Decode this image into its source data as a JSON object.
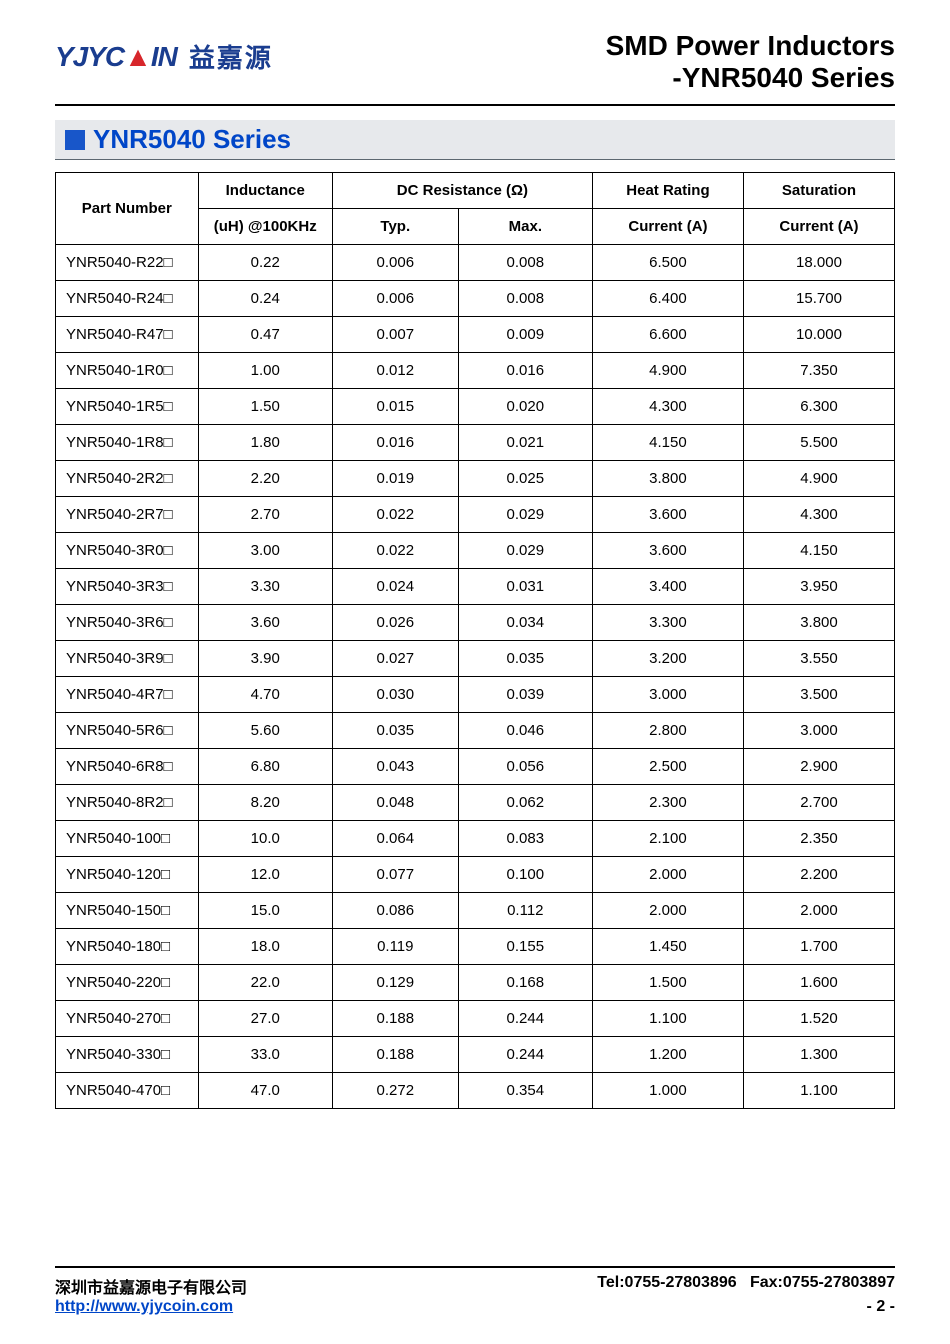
{
  "header": {
    "logo_en_pre": "YJYC",
    "logo_en_red": "▲",
    "logo_en_post": "IN",
    "logo_cn": "益嘉源",
    "title_main": "SMD Power Inductors",
    "title_sub": "-YNR5040 Series"
  },
  "series": {
    "label": "YNR5040 Series"
  },
  "table": {
    "headers": {
      "part_number": "Part Number",
      "inductance": "Inductance",
      "inductance_sub": "(uH) @100KHz",
      "dcr": "DC Resistance (Ω)",
      "typ": "Typ.",
      "max": "Max.",
      "heat": "Heat Rating",
      "heat_sub": "Current (A)",
      "sat": "Saturation",
      "sat_sub": "Current (A)"
    },
    "rows": [
      {
        "pn": "YNR5040-R22□",
        "ind": "0.22",
        "typ": "0.006",
        "max": "0.008",
        "heat": "6.500",
        "sat": "18.000"
      },
      {
        "pn": "YNR5040-R24□",
        "ind": "0.24",
        "typ": "0.006",
        "max": "0.008",
        "heat": "6.400",
        "sat": "15.700"
      },
      {
        "pn": "YNR5040-R47□",
        "ind": "0.47",
        "typ": "0.007",
        "max": "0.009",
        "heat": "6.600",
        "sat": "10.000"
      },
      {
        "pn": "YNR5040-1R0□",
        "ind": "1.00",
        "typ": "0.012",
        "max": "0.016",
        "heat": "4.900",
        "sat": "7.350"
      },
      {
        "pn": "YNR5040-1R5□",
        "ind": "1.50",
        "typ": "0.015",
        "max": "0.020",
        "heat": "4.300",
        "sat": "6.300"
      },
      {
        "pn": "YNR5040-1R8□",
        "ind": "1.80",
        "typ": "0.016",
        "max": "0.021",
        "heat": "4.150",
        "sat": "5.500"
      },
      {
        "pn": "YNR5040-2R2□",
        "ind": "2.20",
        "typ": "0.019",
        "max": "0.025",
        "heat": "3.800",
        "sat": "4.900"
      },
      {
        "pn": "YNR5040-2R7□",
        "ind": "2.70",
        "typ": "0.022",
        "max": "0.029",
        "heat": "3.600",
        "sat": "4.300"
      },
      {
        "pn": "YNR5040-3R0□",
        "ind": "3.00",
        "typ": "0.022",
        "max": "0.029",
        "heat": "3.600",
        "sat": "4.150"
      },
      {
        "pn": "YNR5040-3R3□",
        "ind": "3.30",
        "typ": "0.024",
        "max": "0.031",
        "heat": "3.400",
        "sat": "3.950"
      },
      {
        "pn": "YNR5040-3R6□",
        "ind": "3.60",
        "typ": "0.026",
        "max": "0.034",
        "heat": "3.300",
        "sat": "3.800"
      },
      {
        "pn": "YNR5040-3R9□",
        "ind": "3.90",
        "typ": "0.027",
        "max": "0.035",
        "heat": "3.200",
        "sat": "3.550"
      },
      {
        "pn": "YNR5040-4R7□",
        "ind": "4.70",
        "typ": "0.030",
        "max": "0.039",
        "heat": "3.000",
        "sat": "3.500"
      },
      {
        "pn": "YNR5040-5R6□",
        "ind": "5.60",
        "typ": "0.035",
        "max": "0.046",
        "heat": "2.800",
        "sat": "3.000"
      },
      {
        "pn": "YNR5040-6R8□",
        "ind": "6.80",
        "typ": "0.043",
        "max": "0.056",
        "heat": "2.500",
        "sat": "2.900"
      },
      {
        "pn": "YNR5040-8R2□",
        "ind": "8.20",
        "typ": "0.048",
        "max": "0.062",
        "heat": "2.300",
        "sat": "2.700"
      },
      {
        "pn": "YNR5040-100□",
        "ind": "10.0",
        "typ": "0.064",
        "max": "0.083",
        "heat": "2.100",
        "sat": "2.350"
      },
      {
        "pn": "YNR5040-120□",
        "ind": "12.0",
        "typ": "0.077",
        "max": "0.100",
        "heat": "2.000",
        "sat": "2.200"
      },
      {
        "pn": "YNR5040-150□",
        "ind": "15.0",
        "typ": "0.086",
        "max": "0.112",
        "heat": "2.000",
        "sat": "2.000"
      },
      {
        "pn": "YNR5040-180□",
        "ind": "18.0",
        "typ": "0.119",
        "max": "0.155",
        "heat": "1.450",
        "sat": "1.700"
      },
      {
        "pn": "YNR5040-220□",
        "ind": "22.0",
        "typ": "0.129",
        "max": "0.168",
        "heat": "1.500",
        "sat": "1.600"
      },
      {
        "pn": "YNR5040-270□",
        "ind": "27.0",
        "typ": "0.188",
        "max": "0.244",
        "heat": "1.100",
        "sat": "1.520"
      },
      {
        "pn": "YNR5040-330□",
        "ind": "33.0",
        "typ": "0.188",
        "max": "0.244",
        "heat": "1.200",
        "sat": "1.300"
      },
      {
        "pn": "YNR5040-470□",
        "ind": "47.0",
        "typ": "0.272",
        "max": "0.354",
        "heat": "1.000",
        "sat": "1.100"
      }
    ]
  },
  "footer": {
    "company": "深圳市益嘉源电子有限公司",
    "contact": "Tel:0755-27803896   Fax:0755-27803897",
    "url": "http://www.yjycoin.com",
    "page": "- 2 -"
  },
  "style": {
    "brand_blue": "#1a3d8f",
    "link_blue": "#0046c8",
    "brand_red": "#d7262b",
    "bar_bg": "#e7e9ec",
    "title_fontsize": 28,
    "series_fontsize": 26,
    "table_fontsize": 15,
    "footer_fontsize": 16
  }
}
